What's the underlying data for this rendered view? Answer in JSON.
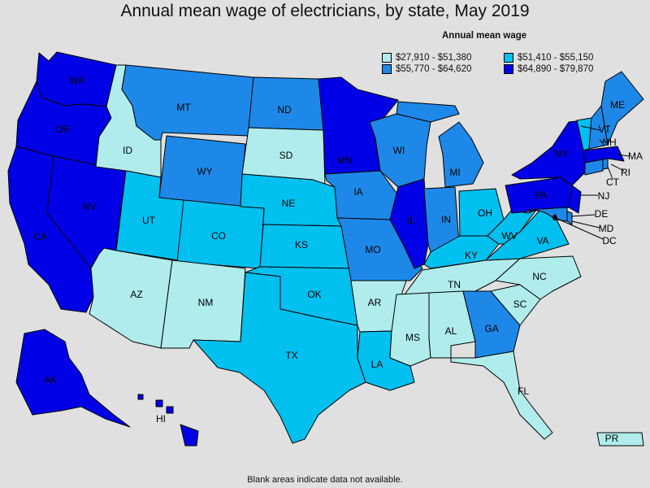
{
  "title": "Annual mean wage of electricians, by state, May 2019",
  "legend": {
    "title": "Annual mean wage",
    "ranges": [
      {
        "label": "$27,910 - $51,380",
        "color": "#b0ecec"
      },
      {
        "label": "$51,410 - $55,150",
        "color": "#00c0f0"
      },
      {
        "label": "$55,770 - $64,620",
        "color": "#1e88e8"
      },
      {
        "label": "$64,890 - $79,870",
        "color": "#0000e6"
      }
    ]
  },
  "footnote": "Blank areas indicate data not available.",
  "states": [
    {
      "code": "WA",
      "bin": 3
    },
    {
      "code": "OR",
      "bin": 3
    },
    {
      "code": "CA",
      "bin": 3
    },
    {
      "code": "NV",
      "bin": 3
    },
    {
      "code": "ID",
      "bin": 0
    },
    {
      "code": "MT",
      "bin": 2
    },
    {
      "code": "WY",
      "bin": 2
    },
    {
      "code": "UT",
      "bin": 1
    },
    {
      "code": "CO",
      "bin": 1
    },
    {
      "code": "AZ",
      "bin": 0
    },
    {
      "code": "NM",
      "bin": 0
    },
    {
      "code": "ND",
      "bin": 2
    },
    {
      "code": "SD",
      "bin": 0
    },
    {
      "code": "NE",
      "bin": 1
    },
    {
      "code": "KS",
      "bin": 1
    },
    {
      "code": "OK",
      "bin": 1
    },
    {
      "code": "TX",
      "bin": 1
    },
    {
      "code": "MN",
      "bin": 3
    },
    {
      "code": "IA",
      "bin": 2
    },
    {
      "code": "MO",
      "bin": 2
    },
    {
      "code": "AR",
      "bin": 0
    },
    {
      "code": "LA",
      "bin": 1
    },
    {
      "code": "WI",
      "bin": 2
    },
    {
      "code": "IL",
      "bin": 3
    },
    {
      "code": "MI",
      "bin": 2
    },
    {
      "code": "IN",
      "bin": 2
    },
    {
      "code": "OH",
      "bin": 1
    },
    {
      "code": "KY",
      "bin": 1
    },
    {
      "code": "TN",
      "bin": 0
    },
    {
      "code": "MS",
      "bin": 0
    },
    {
      "code": "AL",
      "bin": 0
    },
    {
      "code": "GA",
      "bin": 2
    },
    {
      "code": "FL",
      "bin": 0
    },
    {
      "code": "SC",
      "bin": 0
    },
    {
      "code": "NC",
      "bin": 0
    },
    {
      "code": "VA",
      "bin": 1
    },
    {
      "code": "WV",
      "bin": 1
    },
    {
      "code": "PA",
      "bin": 3
    },
    {
      "code": "NY",
      "bin": 3
    },
    {
      "code": "NJ",
      "bin": 3
    },
    {
      "code": "DE",
      "bin": 2
    },
    {
      "code": "MD",
      "bin": 2
    },
    {
      "code": "DC",
      "bin": 3
    },
    {
      "code": "CT",
      "bin": 2
    },
    {
      "code": "RI",
      "bin": 2
    },
    {
      "code": "MA",
      "bin": 3
    },
    {
      "code": "VT",
      "bin": 1
    },
    {
      "code": "NH",
      "bin": 2
    },
    {
      "code": "ME",
      "bin": 2
    },
    {
      "code": "AK",
      "bin": 3
    },
    {
      "code": "HI",
      "bin": 3
    },
    {
      "code": "PR",
      "bin": 0
    }
  ]
}
